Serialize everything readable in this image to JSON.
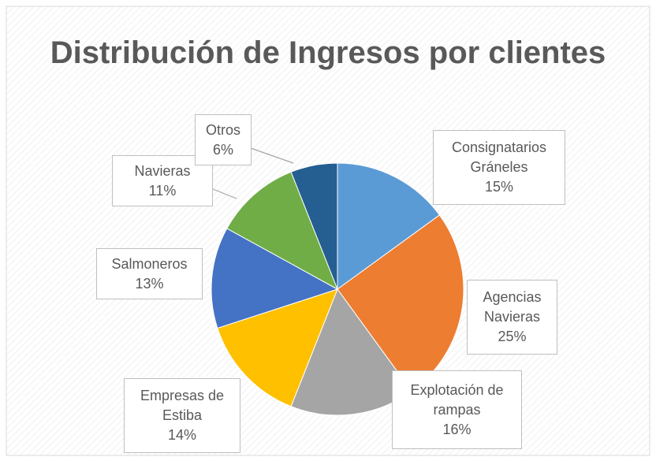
{
  "chart_data": {
    "type": "pie",
    "title": "Distribución de Ingresos por clientes",
    "categories": [
      "Consignatarios Gráneles",
      "Agencias Navieras",
      "Explotación de rampas",
      "Empresas de Estiba",
      "Salmoneros",
      "Navieras",
      "Otros"
    ],
    "values": [
      15,
      25,
      16,
      14,
      13,
      11,
      6
    ],
    "value_labels": [
      "15%",
      "25%",
      "16%",
      "14%",
      "13%",
      "11%",
      "6%"
    ],
    "colors": [
      "#5b9bd5",
      "#ed7d31",
      "#a5a5a5",
      "#ffc000",
      "#4472c4",
      "#70ad47",
      "#255e91"
    ]
  }
}
